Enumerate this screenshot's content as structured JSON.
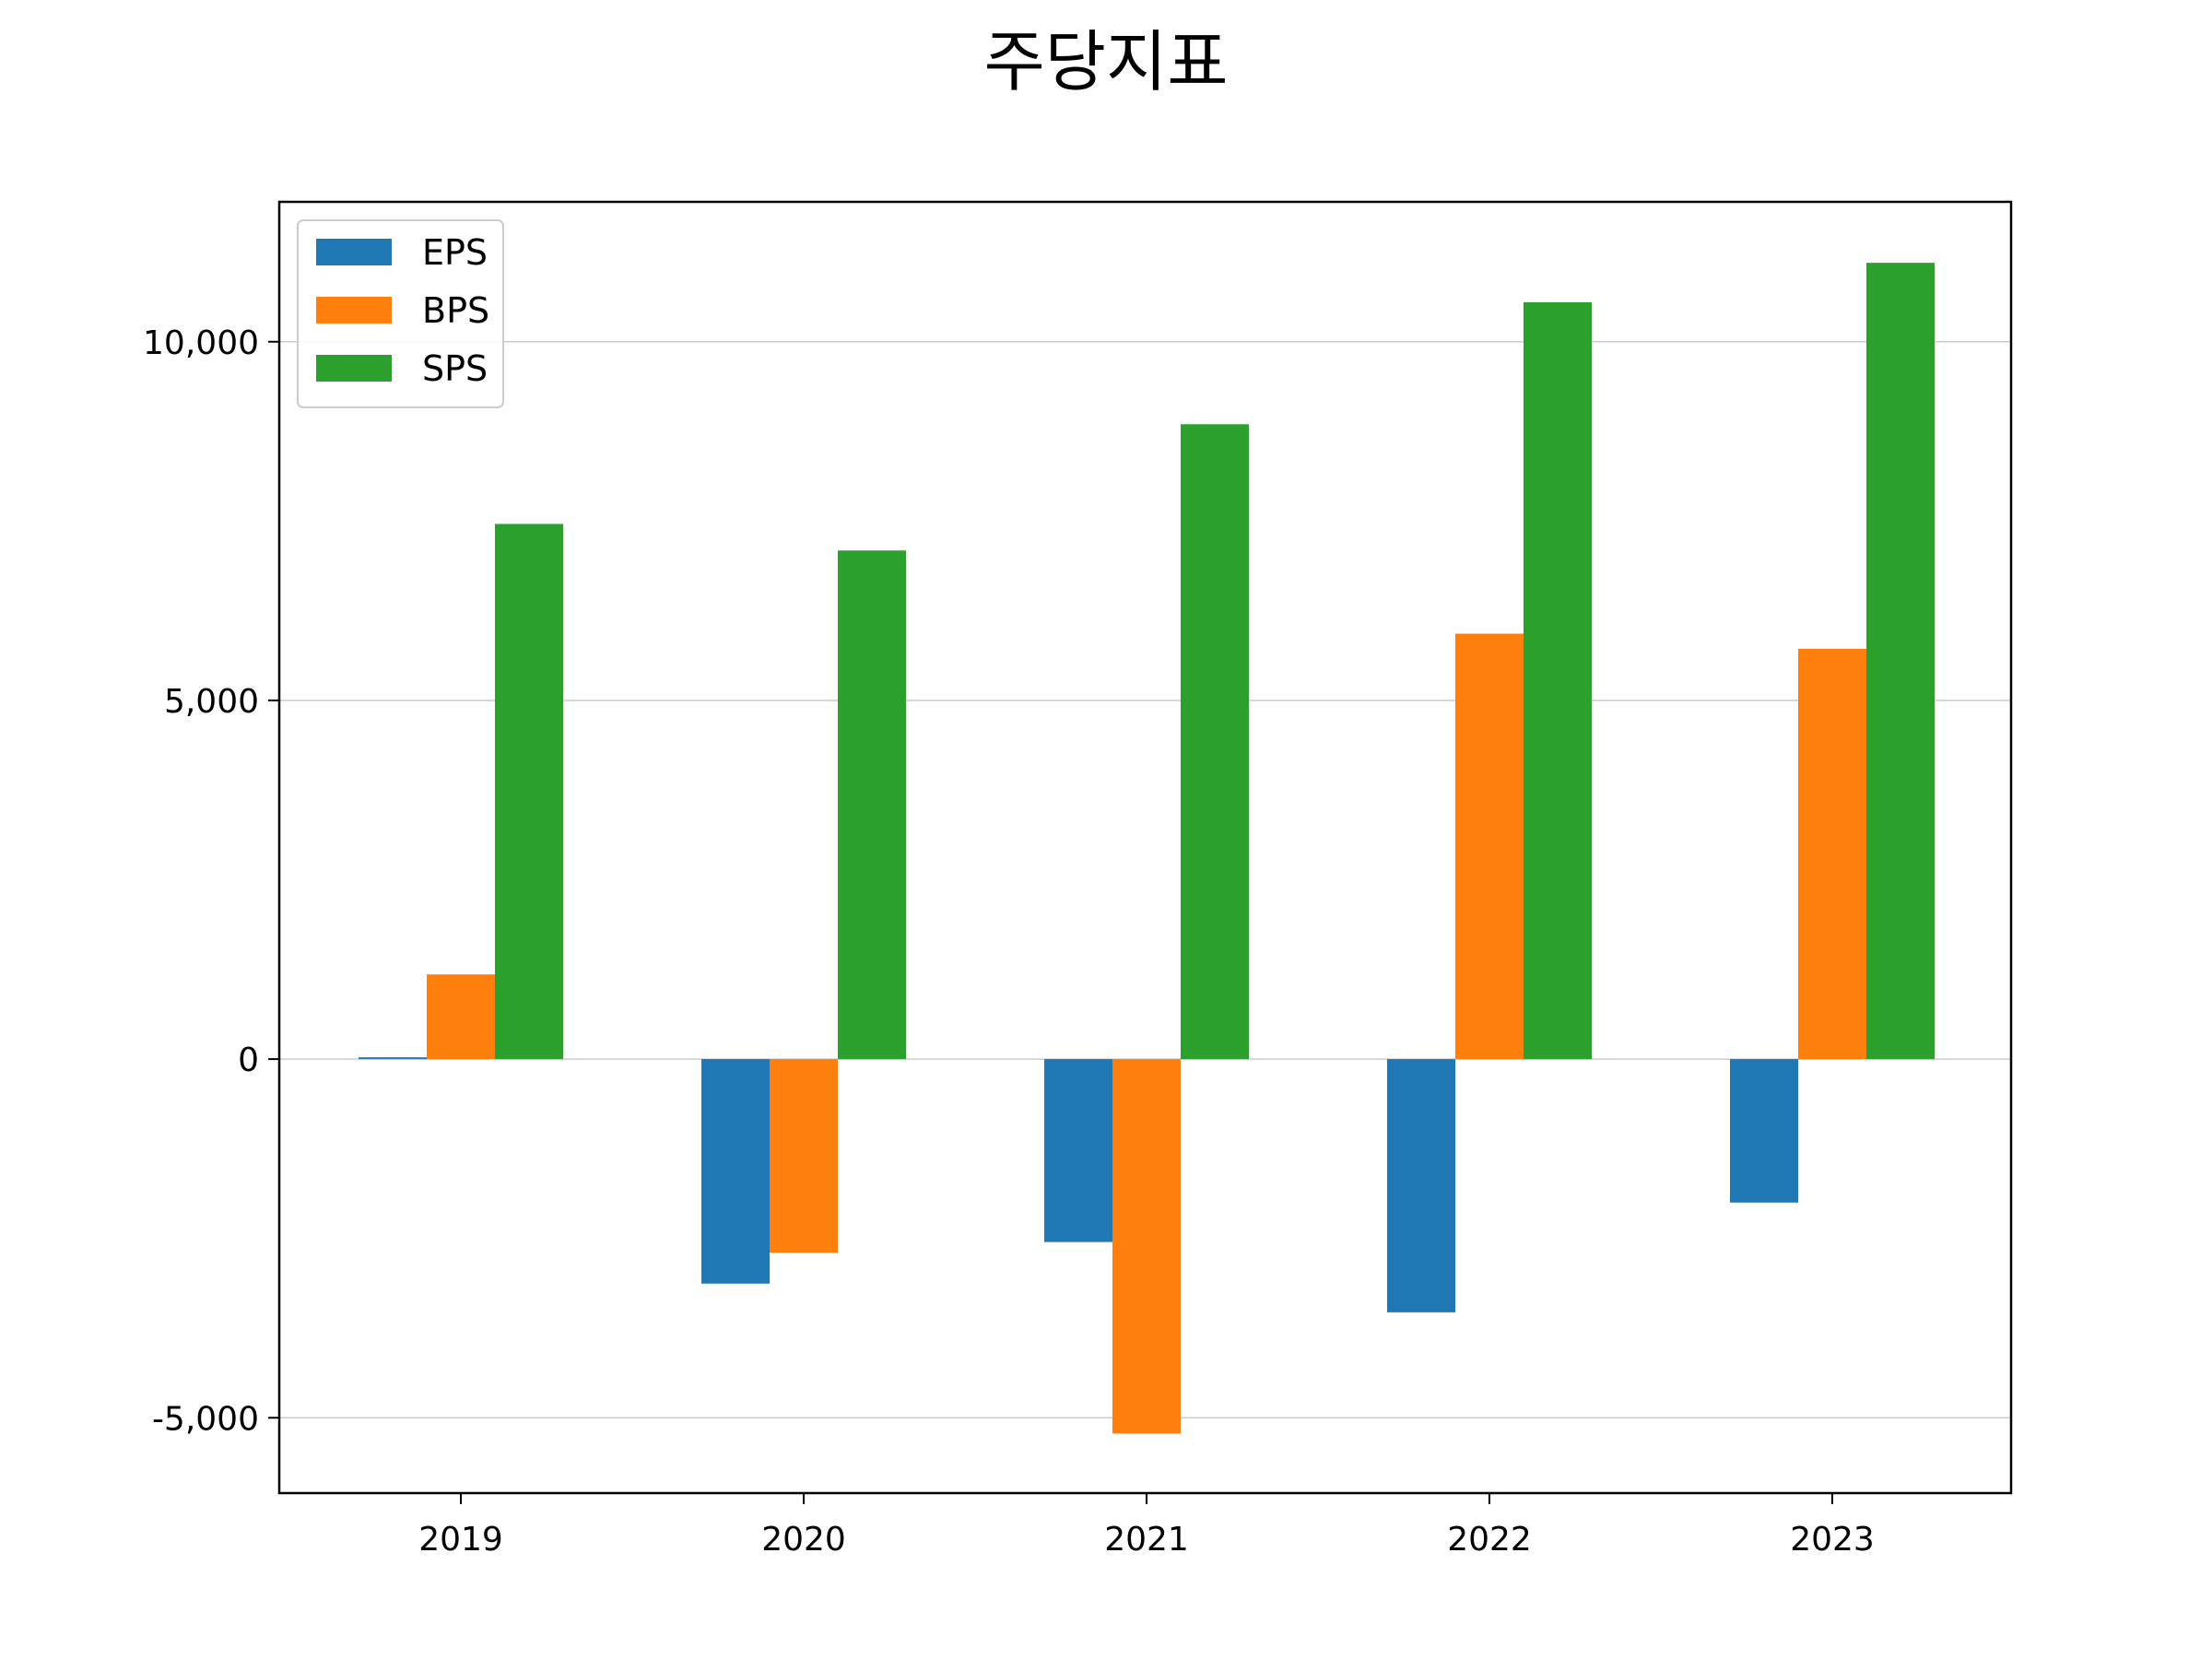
{
  "chart_data": {
    "type": "bar",
    "title": "주당지표",
    "xlabel": "",
    "ylabel": "",
    "categories": [
      "2019",
      "2020",
      "2021",
      "2022",
      "2023"
    ],
    "series": [
      {
        "name": "EPS",
        "color": "#1f77b4",
        "values": [
          25,
          -3130,
          -2550,
          -3530,
          -2000
        ]
      },
      {
        "name": "BPS",
        "color": "#ff7f0e",
        "values": [
          1180,
          -2700,
          -5220,
          5930,
          5720
        ]
      },
      {
        "name": "SPS",
        "color": "#2ca02c",
        "values": [
          7460,
          7090,
          8850,
          10550,
          11100
        ]
      }
    ],
    "ylim": [
      -6050,
      11950
    ],
    "yticks": [
      -5000,
      0,
      5000,
      10000
    ],
    "ytick_labels": [
      "-5,000",
      "0",
      "5,000",
      "10,000"
    ],
    "grid": true,
    "legend_position": "top-left"
  }
}
